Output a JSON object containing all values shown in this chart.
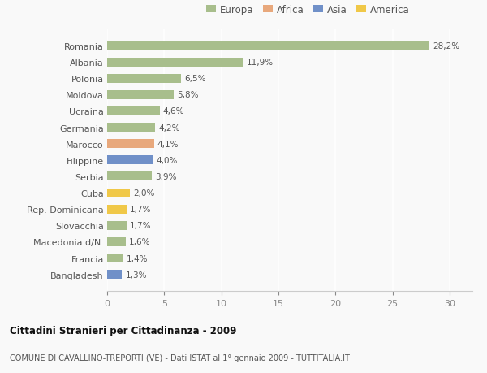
{
  "categories": [
    "Romania",
    "Albania",
    "Polonia",
    "Moldova",
    "Ucraina",
    "Germania",
    "Marocco",
    "Filippine",
    "Serbia",
    "Cuba",
    "Rep. Dominicana",
    "Slovacchia",
    "Macedonia d/N.",
    "Francia",
    "Bangladesh"
  ],
  "values": [
    28.2,
    11.9,
    6.5,
    5.8,
    4.6,
    4.2,
    4.1,
    4.0,
    3.9,
    2.0,
    1.7,
    1.7,
    1.6,
    1.4,
    1.3
  ],
  "labels": [
    "28,2%",
    "11,9%",
    "6,5%",
    "5,8%",
    "4,6%",
    "4,2%",
    "4,1%",
    "4,0%",
    "3,9%",
    "2,0%",
    "1,7%",
    "1,7%",
    "1,6%",
    "1,4%",
    "1,3%"
  ],
  "continents": [
    "Europa",
    "Europa",
    "Europa",
    "Europa",
    "Europa",
    "Europa",
    "Africa",
    "Asia",
    "Europa",
    "America",
    "America",
    "Europa",
    "Europa",
    "Europa",
    "Asia"
  ],
  "colors": {
    "Europa": "#a8be8c",
    "Africa": "#e8a87c",
    "Asia": "#7090c8",
    "America": "#f0c848"
  },
  "legend_order": [
    "Europa",
    "Africa",
    "Asia",
    "America"
  ],
  "title1": "Cittadini Stranieri per Cittadinanza - 2009",
  "title2": "COMUNE DI CAVALLINO-TREPORTI (VE) - Dati ISTAT al 1° gennaio 2009 - TUTTITALIA.IT",
  "xlim": [
    0,
    32
  ],
  "xticks": [
    0,
    5,
    10,
    15,
    20,
    25,
    30
  ],
  "background_color": "#f9f9f9",
  "grid_color": "#ffffff"
}
